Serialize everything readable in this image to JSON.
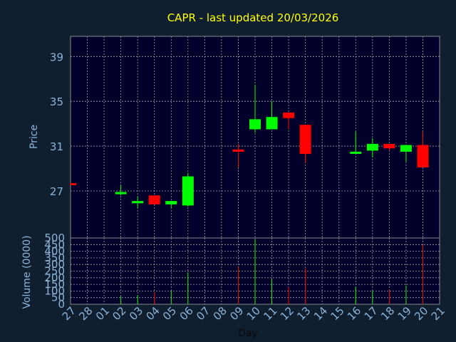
{
  "chart_data": [
    {
      "type": "candlestick",
      "title": "CAPR - last updated 20/03/2026",
      "ylabel": "Price",
      "xlabel": "Day",
      "ylim": [
        22.8,
        40.8
      ],
      "yticks": [
        27,
        31,
        35,
        39
      ],
      "x_ticks": [
        "27",
        "28",
        "01",
        "02",
        "03",
        "04",
        "05",
        "06",
        "07",
        "08",
        "09",
        "10",
        "11",
        "12",
        "13",
        "14",
        "15",
        "16",
        "17",
        "18",
        "19",
        "20",
        "21"
      ],
      "grid": true,
      "candles": [
        {
          "x": "27",
          "open": 27.7,
          "close": 27.6,
          "high": 27.7,
          "low": 27.6
        },
        {
          "x": "02",
          "open": 26.8,
          "close": 26.9,
          "high": 27.5,
          "low": 26.6
        },
        {
          "x": "03",
          "open": 25.9,
          "close": 26.1,
          "high": 26.5,
          "low": 25.5
        },
        {
          "x": "04",
          "open": 26.6,
          "close": 25.8,
          "high": 26.6,
          "low": 25.8
        },
        {
          "x": "05",
          "open": 25.8,
          "close": 26.1,
          "high": 26.1,
          "low": 25.5
        },
        {
          "x": "06",
          "open": 25.7,
          "close": 28.3,
          "high": 28.6,
          "low": 25.6
        },
        {
          "x": "09",
          "open": 30.7,
          "close": 30.5,
          "high": 31.2,
          "low": 29.1
        },
        {
          "x": "10",
          "open": 32.5,
          "close": 33.4,
          "high": 36.5,
          "low": 32.2
        },
        {
          "x": "11",
          "open": 32.5,
          "close": 33.6,
          "high": 35.0,
          "low": 32.5
        },
        {
          "x": "12",
          "open": 34.0,
          "close": 33.5,
          "high": 34.0,
          "low": 32.5
        },
        {
          "x": "13",
          "open": 32.9,
          "close": 30.3,
          "high": 32.9,
          "low": 29.5
        },
        {
          "x": "16",
          "open": 30.4,
          "close": 30.5,
          "high": 32.3,
          "low": 30.3
        },
        {
          "x": "17",
          "open": 30.6,
          "close": 31.2,
          "high": 31.7,
          "low": 30.0
        },
        {
          "x": "18",
          "open": 31.2,
          "close": 30.8,
          "high": 31.2,
          "low": 30.6
        },
        {
          "x": "19",
          "open": 30.5,
          "close": 31.1,
          "high": 31.1,
          "low": 29.6
        },
        {
          "x": "20",
          "open": 31.1,
          "close": 29.1,
          "high": 32.3,
          "low": 29.1
        }
      ],
      "colors": {
        "up": "#00ff00",
        "down": "#ff0000",
        "title": "#ffff00",
        "axis_text": "#8cb4d8",
        "background": "#0f1f30",
        "plot_area": "#00002a"
      }
    },
    {
      "type": "bar",
      "ylabel": "Volume (0000)",
      "xlabel": "Day",
      "ylim": [
        0,
        500
      ],
      "yticks": [
        0,
        50,
        100,
        150,
        200,
        250,
        300,
        350,
        400,
        450,
        500
      ],
      "grid": true,
      "bars": [
        {
          "x": "02",
          "value": 60,
          "dir": "up"
        },
        {
          "x": "03",
          "value": 70,
          "dir": "up"
        },
        {
          "x": "04",
          "value": 90,
          "dir": "down"
        },
        {
          "x": "05",
          "value": 100,
          "dir": "up"
        },
        {
          "x": "06",
          "value": 240,
          "dir": "up"
        },
        {
          "x": "09",
          "value": 280,
          "dir": "down"
        },
        {
          "x": "10",
          "value": 490,
          "dir": "up"
        },
        {
          "x": "11",
          "value": 190,
          "dir": "up"
        },
        {
          "x": "12",
          "value": 130,
          "dir": "down"
        },
        {
          "x": "13",
          "value": 270,
          "dir": "down"
        },
        {
          "x": "16",
          "value": 130,
          "dir": "up"
        },
        {
          "x": "17",
          "value": 100,
          "dir": "up"
        },
        {
          "x": "18",
          "value": 110,
          "dir": "down"
        },
        {
          "x": "19",
          "value": 140,
          "dir": "up"
        },
        {
          "x": "20",
          "value": 450,
          "dir": "down"
        }
      ]
    }
  ]
}
